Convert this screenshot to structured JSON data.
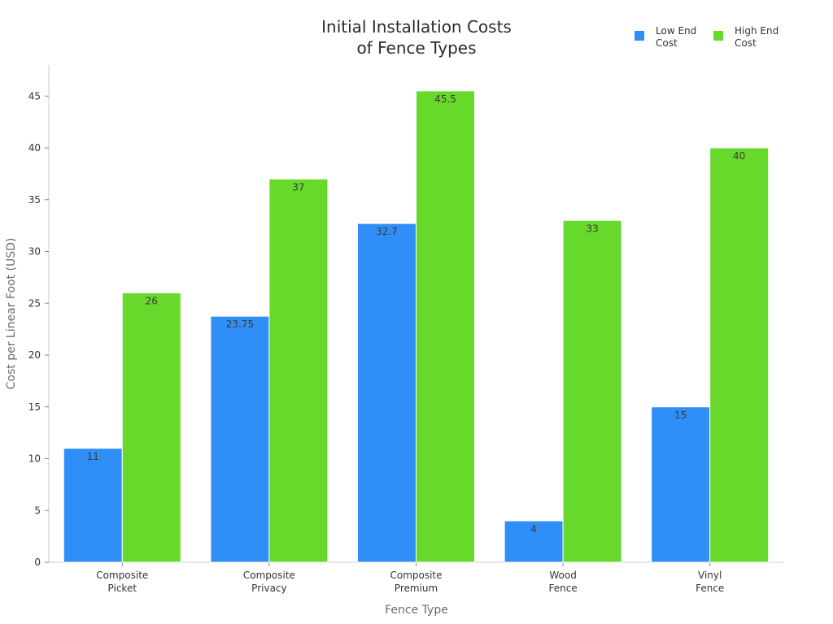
{
  "chart_data": {
    "type": "bar",
    "title_lines": [
      "Initial Installation Costs",
      "of Fence Types"
    ],
    "xlabel": "Fence Type",
    "ylabel": "Cost per Linear Foot (USD)",
    "categories": [
      [
        "Composite",
        "Picket"
      ],
      [
        "Composite",
        "Privacy"
      ],
      [
        "Composite",
        "Premium"
      ],
      [
        "Wood",
        "Fence"
      ],
      [
        "Vinyl",
        "Fence"
      ]
    ],
    "series": [
      {
        "name_lines": [
          "Low End",
          "Cost"
        ],
        "color": "#2f8ff7",
        "values": [
          11,
          23.75,
          32.7,
          4,
          15
        ],
        "labels": [
          "11",
          "23.75",
          "32.7",
          "4",
          "15"
        ]
      },
      {
        "name_lines": [
          "High End",
          "Cost"
        ],
        "color": "#66d92b",
        "values": [
          26,
          37,
          45.5,
          33,
          40
        ],
        "labels": [
          "26",
          "37",
          "45.5",
          "33",
          "40"
        ]
      }
    ],
    "ylim": [
      0,
      48
    ],
    "yticks": [
      0,
      5,
      10,
      15,
      20,
      25,
      30,
      35,
      40,
      45
    ],
    "grid": false,
    "legend_position": "top-right"
  }
}
